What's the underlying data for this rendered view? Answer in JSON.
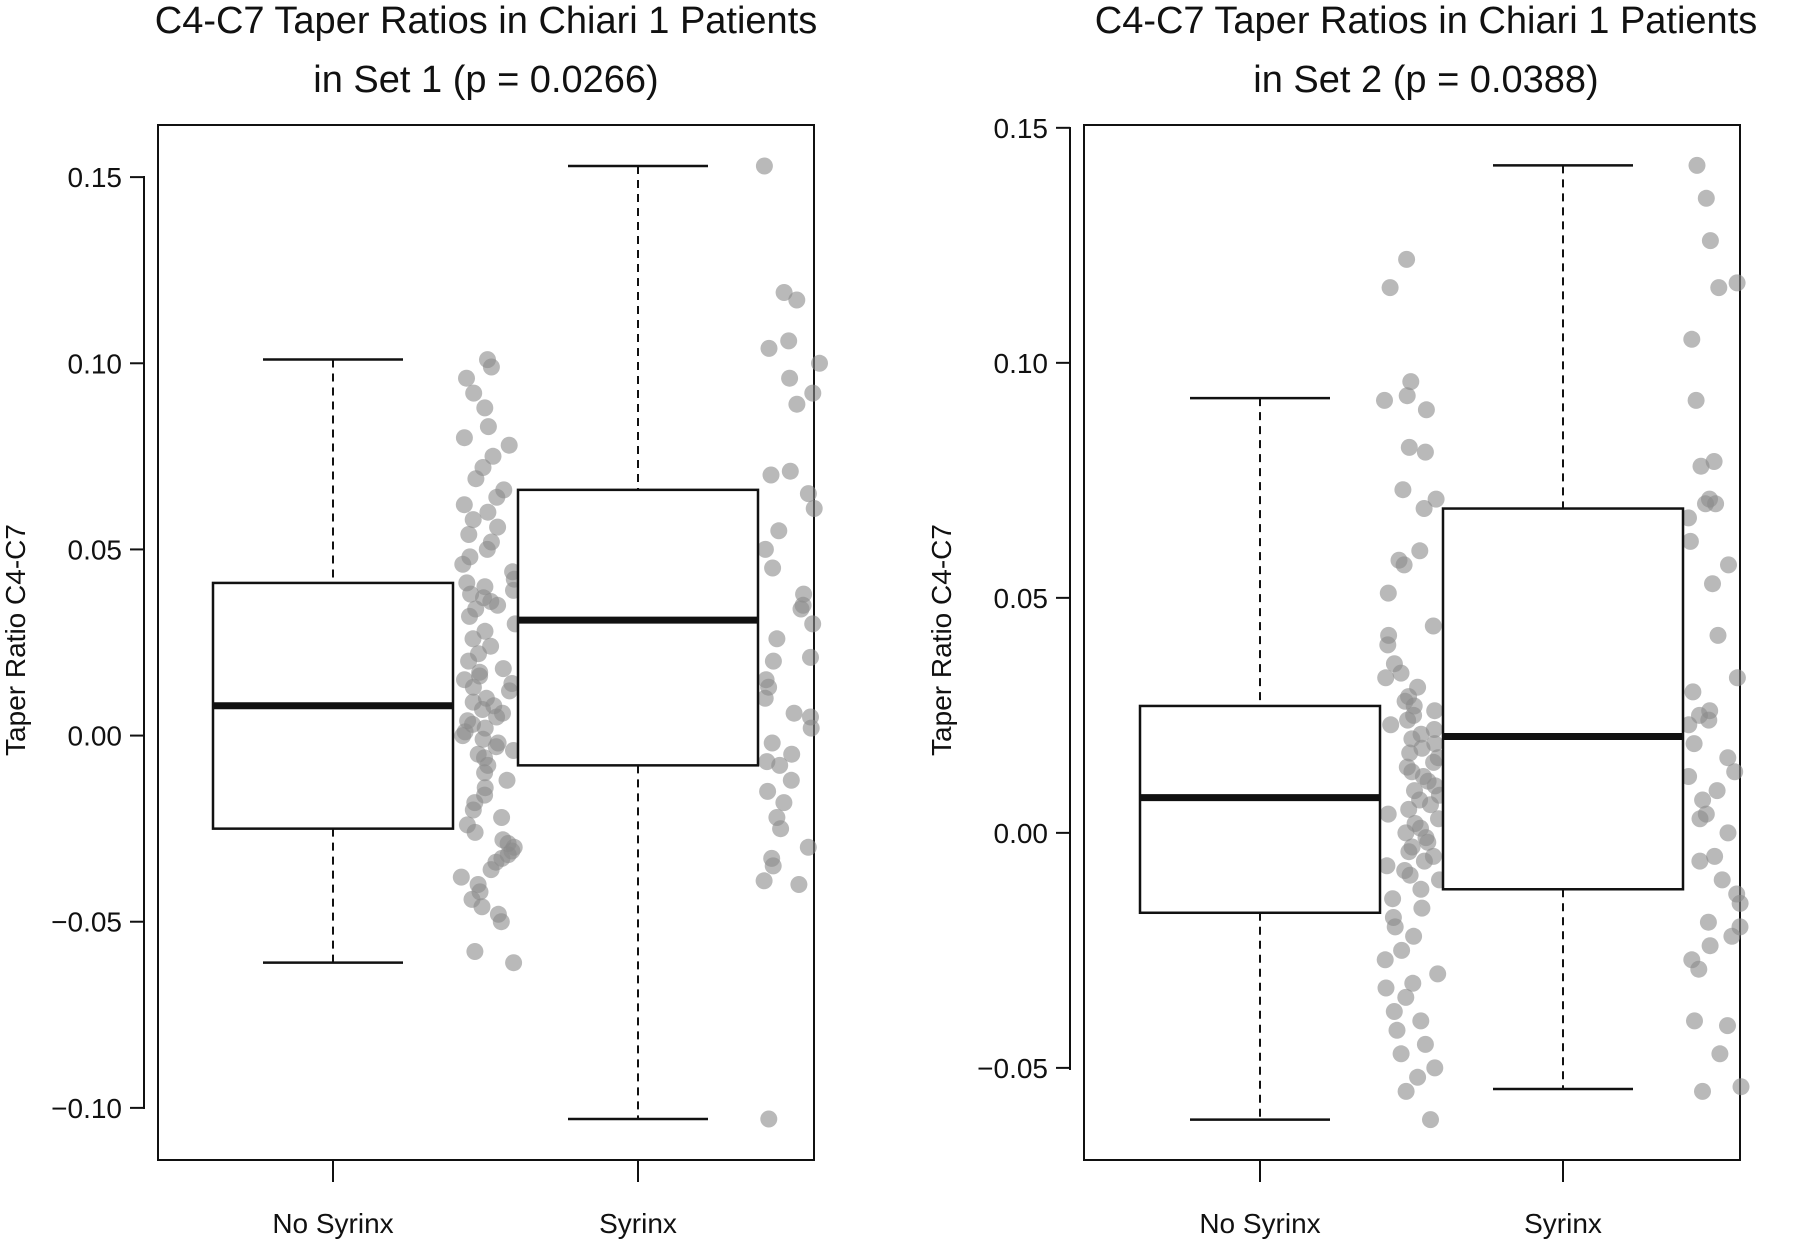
{
  "chart_data": [
    {
      "type": "boxplot",
      "title_line1": "C4-C7 Taper Ratios in Chiari 1 Patients",
      "title_line2": "in Set 1 (p = 0.0266)",
      "ylabel": "Taper Ratio C4-C7",
      "categories": [
        "No Syrinx",
        "Syrinx"
      ],
      "yticks": [
        "0.15",
        "0.10",
        "0.05",
        "0.00",
        "−0.05",
        "−0.10"
      ],
      "ytick_values": [
        0.15,
        0.1,
        0.05,
        0.0,
        -0.05,
        -0.1
      ],
      "ylim": [
        -0.114,
        0.164
      ],
      "boxes": [
        {
          "name": "No Syrinx",
          "whisker_low": -0.061,
          "q1": -0.025,
          "median": 0.008,
          "q3": 0.041,
          "whisker_high": 0.101
        },
        {
          "name": "Syrinx",
          "whisker_low": -0.103,
          "q1": -0.008,
          "median": 0.031,
          "q3": 0.066,
          "whisker_high": 0.153
        }
      ],
      "points": [
        [
          0.101,
          0.099,
          0.096,
          0.092,
          0.088,
          0.083,
          0.08,
          0.078,
          0.075,
          0.072,
          0.069,
          0.066,
          0.064,
          0.062,
          0.06,
          0.058,
          0.056,
          0.054,
          0.052,
          0.05,
          0.048,
          0.046,
          0.044,
          0.042,
          0.041,
          0.04,
          0.039,
          0.038,
          0.037,
          0.036,
          0.035,
          0.034,
          0.032,
          0.03,
          0.028,
          0.026,
          0.024,
          0.022,
          0.02,
          0.018,
          0.017,
          0.016,
          0.015,
          0.014,
          0.013,
          0.012,
          0.01,
          0.009,
          0.008,
          0.007,
          0.006,
          0.005,
          0.004,
          0.003,
          0.002,
          0.001,
          0.0,
          -0.001,
          -0.002,
          -0.003,
          -0.004,
          -0.005,
          -0.006,
          -0.008,
          -0.01,
          -0.012,
          -0.014,
          -0.016,
          -0.018,
          -0.02,
          -0.022,
          -0.024,
          -0.026,
          -0.028,
          -0.029,
          -0.03,
          -0.031,
          -0.032,
          -0.033,
          -0.034,
          -0.036,
          -0.038,
          -0.04,
          -0.042,
          -0.044,
          -0.046,
          -0.048,
          -0.05,
          -0.058,
          -0.061
        ],
        [
          0.153,
          0.119,
          0.117,
          0.106,
          0.104,
          0.1,
          0.096,
          0.092,
          0.089,
          0.071,
          0.07,
          0.065,
          0.061,
          0.055,
          0.05,
          0.045,
          0.038,
          0.035,
          0.034,
          0.03,
          0.026,
          0.021,
          0.02,
          0.015,
          0.013,
          0.01,
          0.006,
          0.005,
          0.002,
          -0.002,
          -0.005,
          -0.007,
          -0.008,
          -0.012,
          -0.015,
          -0.018,
          -0.022,
          -0.025,
          -0.03,
          -0.033,
          -0.035,
          -0.039,
          -0.04,
          -0.103
        ]
      ]
    },
    {
      "type": "boxplot",
      "title_line1": "C4-C7 Taper Ratios in Chiari 1 Patients",
      "title_line2": "in Set 2 (p = 0.0388)",
      "ylabel": "Taper Ratio C4-C7",
      "categories": [
        "No Syrinx",
        "Syrinx"
      ],
      "yticks": [
        "0.15",
        "0.10",
        "0.05",
        "0.00",
        "−0.05"
      ],
      "ytick_values": [
        0.15,
        0.1,
        0.05,
        0.0,
        -0.05
      ],
      "ylim": [
        -0.0696,
        0.1506
      ],
      "boxes": [
        {
          "name": "No Syrinx",
          "whisker_low": -0.061,
          "q1": -0.017,
          "median": 0.0075,
          "q3": 0.027,
          "whisker_high": 0.0925
        },
        {
          "name": "Syrinx",
          "whisker_low": -0.0545,
          "q1": -0.012,
          "median": 0.0205,
          "q3": 0.069,
          "whisker_high": 0.142
        }
      ],
      "points": [
        [
          0.122,
          0.116,
          0.096,
          0.093,
          0.092,
          0.09,
          0.082,
          0.081,
          0.073,
          0.071,
          0.069,
          0.06,
          0.058,
          0.057,
          0.051,
          0.044,
          0.042,
          0.04,
          0.036,
          0.034,
          0.033,
          0.031,
          0.029,
          0.028,
          0.027,
          0.026,
          0.025,
          0.024,
          0.023,
          0.022,
          0.021,
          0.02,
          0.019,
          0.018,
          0.017,
          0.016,
          0.015,
          0.014,
          0.013,
          0.012,
          0.011,
          0.01,
          0.009,
          0.008,
          0.007,
          0.006,
          0.005,
          0.004,
          0.003,
          0.002,
          0.001,
          0.0,
          -0.001,
          -0.002,
          -0.003,
          -0.004,
          -0.005,
          -0.006,
          -0.007,
          -0.008,
          -0.009,
          -0.01,
          -0.012,
          -0.014,
          -0.016,
          -0.018,
          -0.02,
          -0.022,
          -0.025,
          -0.027,
          -0.03,
          -0.032,
          -0.033,
          -0.035,
          -0.038,
          -0.04,
          -0.042,
          -0.045,
          -0.047,
          -0.05,
          -0.052,
          -0.055,
          -0.061
        ],
        [
          0.142,
          0.135,
          0.126,
          0.117,
          0.116,
          0.105,
          0.092,
          0.079,
          0.078,
          0.071,
          0.07,
          0.07,
          0.067,
          0.062,
          0.057,
          0.053,
          0.042,
          0.033,
          0.03,
          0.026,
          0.025,
          0.024,
          0.023,
          0.019,
          0.016,
          0.013,
          0.012,
          0.009,
          0.007,
          0.004,
          0.003,
          0.0,
          -0.005,
          -0.006,
          -0.01,
          -0.013,
          -0.015,
          -0.019,
          -0.02,
          -0.022,
          -0.024,
          -0.027,
          -0.029,
          -0.04,
          -0.041,
          -0.047,
          -0.054,
          -0.055
        ]
      ]
    }
  ]
}
